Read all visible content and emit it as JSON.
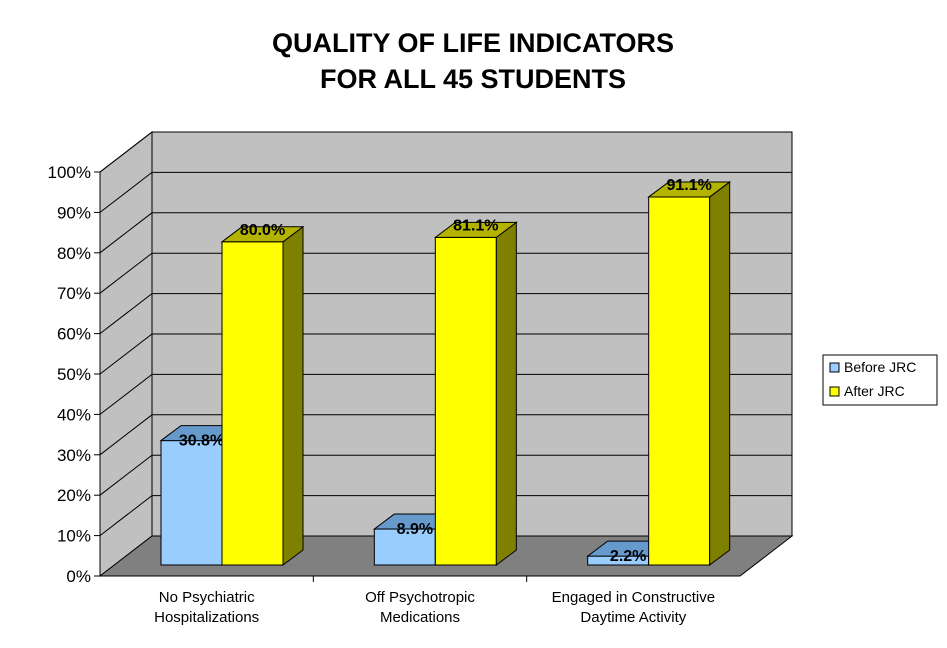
{
  "chart_data": {
    "type": "bar",
    "title_lines": [
      "QUALITY OF LIFE INDICATORS",
      "FOR ALL 45 STUDENTS"
    ],
    "categories": [
      [
        "No Psychiatric",
        "Hospitalizations"
      ],
      [
        "Off Psychotropic",
        "Medications"
      ],
      [
        "Engaged in Constructive",
        "Daytime Activity"
      ]
    ],
    "series": [
      {
        "name": "Before JRC",
        "values": [
          30.8,
          8.9,
          2.2
        ],
        "labels": [
          "30.8%",
          "8.9%",
          "2.2%"
        ],
        "color": "#99CCFF",
        "side_color": "#4F7FAF",
        "top_color": "#6699CC"
      },
      {
        "name": "After JRC",
        "values": [
          80.0,
          81.1,
          91.1
        ],
        "labels": [
          "80.0%",
          "81.1%",
          "91.1%"
        ],
        "color": "#FFFF00",
        "side_color": "#808000",
        "top_color": "#B3B300"
      }
    ],
    "yticks": [
      "0%",
      "10%",
      "20%",
      "30%",
      "40%",
      "50%",
      "60%",
      "70%",
      "80%",
      "90%",
      "100%"
    ],
    "ylim": [
      0,
      100
    ],
    "grid": true,
    "legend_position": "right",
    "wall_color": "#C0C0C0",
    "floor_color": "#808080"
  }
}
